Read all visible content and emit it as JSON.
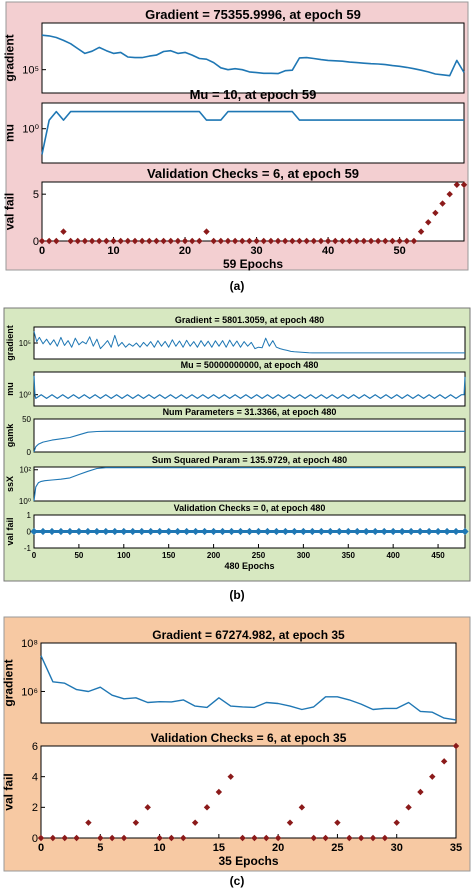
{
  "colors": {
    "panel_a_bg": "#f3cfd1",
    "panel_b_bg": "#d7e8c1",
    "panel_c_bg": "#f7c9a3",
    "line": "#1f77b4",
    "marker": "#8b1a1a"
  },
  "panel_labels": [
    "(a)",
    "(b)",
    "(c)"
  ],
  "chart_data": [
    {
      "panel": "(a)",
      "type": "line",
      "title": "Gradient = 75355.9996, at epoch 59",
      "ylabel": "gradient",
      "xlabel": "",
      "yscale": "log",
      "ylim": [
        10000,
        10000000
      ],
      "yticks": [
        100000
      ],
      "yticklabels": [
        "10⁵"
      ],
      "xlim": [
        0,
        59
      ],
      "xticks": [],
      "xticklabels": [],
      "x": [
        0,
        1,
        2,
        3,
        4,
        5,
        6,
        7,
        8,
        9,
        10,
        11,
        12,
        13,
        14,
        15,
        16,
        17,
        18,
        19,
        20,
        21,
        22,
        23,
        24,
        25,
        26,
        27,
        28,
        29,
        30,
        31,
        32,
        33,
        34,
        35,
        36,
        37,
        38,
        39,
        40,
        41,
        42,
        43,
        44,
        45,
        46,
        47,
        48,
        49,
        50,
        51,
        52,
        53,
        54,
        55,
        56,
        57,
        58,
        59
      ],
      "values": [
        3000000,
        2800000,
        2400000,
        1800000,
        1300000,
        800000,
        500000,
        620000,
        900000,
        650000,
        500000,
        550000,
        350000,
        330000,
        330000,
        380000,
        420000,
        600000,
        650000,
        500000,
        550000,
        420000,
        300000,
        280000,
        200000,
        120000,
        100000,
        110000,
        100000,
        80000,
        75000,
        70000,
        70000,
        68000,
        90000,
        95000,
        320000,
        330000,
        300000,
        270000,
        250000,
        240000,
        230000,
        210000,
        200000,
        190000,
        180000,
        175000,
        165000,
        150000,
        140000,
        125000,
        110000,
        95000,
        80000,
        65000,
        60000,
        55000,
        250000,
        75356
      ]
    },
    {
      "panel": "(a)",
      "type": "line",
      "title": "Mu = 10, at epoch 59",
      "ylabel": "mu",
      "xlabel": "",
      "yscale": "log",
      "ylim": [
        0.0001,
        1000
      ],
      "yticks": [
        1
      ],
      "yticklabels": [
        "10⁰"
      ],
      "xlim": [
        0,
        59
      ],
      "xticks": [],
      "xticklabels": [],
      "x": [
        0,
        1,
        2,
        3,
        4,
        5,
        6,
        7,
        8,
        9,
        10,
        11,
        12,
        13,
        14,
        15,
        16,
        17,
        18,
        19,
        20,
        21,
        22,
        23,
        24,
        25,
        26,
        27,
        28,
        29,
        30,
        31,
        32,
        33,
        34,
        35,
        36,
        37,
        38,
        39,
        40,
        41,
        42,
        43,
        44,
        45,
        46,
        47,
        48,
        49,
        50,
        51,
        52,
        53,
        54,
        55,
        56,
        57,
        58,
        59
      ],
      "values": [
        0.001,
        10,
        100,
        10,
        100,
        100,
        100,
        100,
        100,
        100,
        100,
        100,
        100,
        100,
        100,
        100,
        100,
        100,
        100,
        100,
        100,
        100,
        100,
        10,
        10,
        10,
        100,
        100,
        100,
        100,
        100,
        100,
        100,
        100,
        100,
        100,
        10,
        10,
        10,
        10,
        10,
        10,
        10,
        10,
        10,
        10,
        10,
        10,
        10,
        10,
        10,
        10,
        10,
        10,
        10,
        10,
        10,
        10,
        10,
        10
      ]
    },
    {
      "panel": "(a)",
      "type": "scatter",
      "title": "Validation Checks = 6, at epoch 59",
      "ylabel": "val fail",
      "xlabel": "59 Epochs",
      "ylim": [
        0,
        6.3
      ],
      "yticks": [
        0,
        5
      ],
      "yticklabels": [
        "0",
        "5"
      ],
      "xlim": [
        0,
        59
      ],
      "xticks": [
        0,
        10,
        20,
        30,
        40,
        50
      ],
      "xticklabels": [
        "0",
        "10",
        "20",
        "30",
        "40",
        "50"
      ],
      "x": [
        0,
        1,
        2,
        3,
        4,
        5,
        6,
        7,
        8,
        9,
        10,
        11,
        12,
        13,
        14,
        15,
        16,
        17,
        18,
        19,
        20,
        21,
        22,
        23,
        24,
        25,
        26,
        27,
        28,
        29,
        30,
        31,
        32,
        33,
        34,
        35,
        36,
        37,
        38,
        39,
        40,
        41,
        42,
        43,
        44,
        45,
        46,
        47,
        48,
        49,
        50,
        51,
        52,
        53,
        54,
        55,
        56,
        57,
        58,
        59
      ],
      "values": [
        0,
        0,
        0,
        1,
        0,
        0,
        0,
        0,
        0,
        0,
        0,
        0,
        0,
        0,
        0,
        0,
        0,
        0,
        0,
        0,
        0,
        0,
        0,
        1,
        0,
        0,
        0,
        0,
        0,
        0,
        0,
        0,
        0,
        0,
        0,
        0,
        0,
        0,
        0,
        0,
        0,
        0,
        0,
        0,
        0,
        0,
        0,
        0,
        0,
        0,
        0,
        0,
        0,
        1,
        2,
        3,
        4,
        5,
        6,
        6
      ]
    },
    {
      "panel": "(b)",
      "type": "line",
      "title": "Gradient = 5801.3059, at epoch 480",
      "ylabel": "gradient",
      "xlabel": "",
      "yscale": "log",
      "ylim": [
        1000,
        10000000
      ],
      "yticks": [
        100000
      ],
      "yticklabels": [
        "10⁵"
      ],
      "xlim": [
        0,
        480
      ],
      "xticks": [],
      "xticklabels": [],
      "x": [
        0,
        3,
        6,
        10,
        14,
        18,
        22,
        26,
        30,
        34,
        38,
        42,
        46,
        50,
        54,
        58,
        62,
        66,
        70,
        74,
        78,
        82,
        86,
        90,
        94,
        98,
        102,
        106,
        110,
        114,
        118,
        122,
        126,
        130,
        134,
        138,
        142,
        146,
        150,
        154,
        158,
        162,
        166,
        170,
        174,
        178,
        182,
        186,
        190,
        194,
        198,
        202,
        206,
        210,
        214,
        218,
        222,
        226,
        230,
        234,
        238,
        242,
        246,
        250,
        254,
        258,
        262,
        266,
        270,
        274,
        278,
        282,
        286,
        290,
        294,
        298,
        302,
        306,
        310,
        480
      ],
      "values": [
        3000000,
        150000,
        500000,
        80000,
        300000,
        60000,
        250000,
        40000,
        500000,
        50000,
        200000,
        30000,
        400000,
        60000,
        150000,
        80000,
        600000,
        40000,
        300000,
        20000,
        60000,
        200000,
        30000,
        900000,
        40000,
        120000,
        30000,
        80000,
        40000,
        100000,
        30000,
        120000,
        40000,
        150000,
        30000,
        200000,
        40000,
        160000,
        30000,
        250000,
        40000,
        180000,
        30000,
        220000,
        40000,
        150000,
        30000,
        200000,
        40000,
        170000,
        30000,
        190000,
        40000,
        200000,
        30000,
        230000,
        40000,
        180000,
        30000,
        150000,
        40000,
        120000,
        20000,
        30000,
        25000,
        400000,
        40000,
        200000,
        30000,
        20000,
        15000,
        12000,
        9000,
        8000,
        7500,
        7000,
        6500,
        6000,
        5800,
        5801
      ]
    },
    {
      "panel": "(b)",
      "type": "line",
      "title": "Mu = 50000000000, at epoch 480",
      "ylabel": "mu",
      "xlabel": "",
      "yscale": "log",
      "ylim": [
        0.001,
        1000000
      ],
      "yticks": [
        1
      ],
      "yticklabels": [
        "10⁰"
      ],
      "xlim": [
        0,
        480
      ],
      "xticks": [],
      "xticklabels": [],
      "x": [
        0,
        1,
        2,
        8,
        14,
        20,
        26,
        32,
        38,
        44,
        50,
        56,
        62,
        68,
        74,
        80,
        86,
        92,
        98,
        104,
        110,
        116,
        122,
        128,
        134,
        140,
        146,
        152,
        158,
        164,
        170,
        176,
        182,
        188,
        194,
        200,
        206,
        212,
        218,
        224,
        230,
        236,
        242,
        248,
        254,
        260,
        266,
        272,
        278,
        284,
        290,
        296,
        302,
        308,
        314,
        320,
        326,
        332,
        338,
        344,
        350,
        356,
        362,
        368,
        374,
        380,
        386,
        392,
        398,
        404,
        410,
        416,
        422,
        428,
        434,
        440,
        446,
        452,
        458,
        464,
        470,
        476,
        479,
        480
      ],
      "values": [
        100000,
        1,
        0.1,
        1,
        0.1,
        1,
        0.1,
        1,
        0.1,
        1,
        0.1,
        1,
        0.1,
        1,
        0.1,
        1,
        0.1,
        1,
        0.1,
        1,
        0.1,
        1,
        0.1,
        1,
        0.1,
        1,
        0.1,
        1,
        0.1,
        1,
        0.1,
        1,
        0.1,
        1,
        0.1,
        1,
        0.1,
        1,
        0.1,
        1,
        0.1,
        1,
        0.1,
        1,
        0.1,
        1,
        0.1,
        1,
        0.1,
        1,
        0.1,
        1,
        0.1,
        1,
        0.1,
        1,
        0.1,
        1,
        0.1,
        1,
        0.1,
        1,
        0.1,
        1,
        0.1,
        1,
        0.1,
        1,
        0.1,
        1,
        0.1,
        1,
        0.1,
        1,
        0.1,
        1,
        0.1,
        1,
        0.1,
        1,
        0.1,
        1,
        1,
        50000
      ]
    },
    {
      "panel": "(b)",
      "type": "line",
      "title": "Num Parameters = 31.3366, at epoch 480",
      "ylabel": "gamk",
      "xlabel": "",
      "ylim": [
        0,
        50
      ],
      "yticks": [
        0,
        50
      ],
      "yticklabels": [
        "0",
        "50"
      ],
      "xlim": [
        0,
        480
      ],
      "xticks": [],
      "xticklabels": [],
      "x": [
        0,
        2,
        5,
        10,
        20,
        30,
        40,
        50,
        60,
        70,
        80,
        480
      ],
      "values": [
        0,
        8,
        12,
        15,
        18,
        20,
        22,
        26,
        30,
        31,
        31.3,
        31.3366
      ]
    },
    {
      "panel": "(b)",
      "type": "line",
      "title": "Sum Squared Param = 135.9729, at epoch 480",
      "ylabel": "ssX",
      "xlabel": "",
      "yscale": "log",
      "ylim": [
        1,
        150
      ],
      "yticks": [
        1,
        100
      ],
      "yticklabels": [
        "10⁰",
        "10²"
      ],
      "xlim": [
        0,
        480
      ],
      "xticks": [],
      "xticklabels": [],
      "x": [
        0,
        2,
        5,
        8,
        12,
        20,
        30,
        40,
        50,
        60,
        70,
        80,
        480
      ],
      "values": [
        1,
        8,
        15,
        18,
        20,
        22,
        25,
        30,
        50,
        80,
        120,
        135,
        135.9729
      ]
    },
    {
      "panel": "(b)",
      "type": "scatter",
      "title": "Validation Checks = 0, at epoch 480",
      "ylabel": "val fail",
      "xlabel": "480 Epochs",
      "ylim": [
        -1,
        1
      ],
      "yticks": [
        -1,
        0,
        1
      ],
      "yticklabels": [
        "-1",
        "0",
        "1"
      ],
      "xlim": [
        0,
        480
      ],
      "xticks": [
        0,
        50,
        100,
        150,
        200,
        250,
        300,
        350,
        400,
        450
      ],
      "xticklabels": [
        "0",
        "50",
        "100",
        "150",
        "200",
        "250",
        "300",
        "350",
        "400",
        "450"
      ],
      "x": [
        0,
        10,
        20,
        30,
        40,
        50,
        60,
        70,
        80,
        90,
        100,
        110,
        120,
        130,
        140,
        150,
        160,
        170,
        180,
        190,
        200,
        210,
        220,
        230,
        240,
        250,
        260,
        270,
        280,
        290,
        300,
        310,
        320,
        330,
        340,
        350,
        360,
        370,
        380,
        390,
        400,
        410,
        420,
        430,
        440,
        450,
        460,
        470,
        480
      ],
      "values": [
        0,
        0,
        0,
        0,
        0,
        0,
        0,
        0,
        0,
        0,
        0,
        0,
        0,
        0,
        0,
        0,
        0,
        0,
        0,
        0,
        0,
        0,
        0,
        0,
        0,
        0,
        0,
        0,
        0,
        0,
        0,
        0,
        0,
        0,
        0,
        0,
        0,
        0,
        0,
        0,
        0,
        0,
        0,
        0,
        0,
        0,
        0,
        0,
        0
      ]
    },
    {
      "panel": "(c)",
      "type": "line",
      "title": "Gradient = 67274.982, at epoch 35",
      "ylabel": "gradient",
      "xlabel": "",
      "yscale": "log",
      "ylim": [
        50000,
        100000000
      ],
      "yticks": [
        1000000,
        100000000
      ],
      "yticklabels": [
        "10⁶",
        "10⁸"
      ],
      "xlim": [
        0,
        35
      ],
      "xticks": [],
      "xticklabels": [],
      "x": [
        0,
        1,
        2,
        3,
        4,
        5,
        6,
        7,
        8,
        9,
        10,
        11,
        12,
        13,
        14,
        15,
        16,
        17,
        18,
        19,
        20,
        21,
        22,
        23,
        24,
        25,
        26,
        27,
        28,
        29,
        30,
        31,
        32,
        33,
        34,
        35
      ],
      "values": [
        30000000,
        2500000,
        2200000,
        1200000,
        1000000,
        1500000,
        700000,
        500000,
        550000,
        350000,
        380000,
        370000,
        450000,
        250000,
        220000,
        550000,
        250000,
        230000,
        220000,
        350000,
        320000,
        250000,
        180000,
        230000,
        600000,
        600000,
        450000,
        300000,
        180000,
        200000,
        200000,
        350000,
        150000,
        140000,
        80000,
        67275
      ]
    },
    {
      "panel": "(c)",
      "type": "scatter",
      "title": "Validation Checks = 6, at epoch 35",
      "ylabel": "val fail",
      "xlabel": "35 Epochs",
      "ylim": [
        0,
        6
      ],
      "yticks": [
        0,
        2,
        4,
        6
      ],
      "yticklabels": [
        "0",
        "2",
        "4",
        "6"
      ],
      "xlim": [
        0,
        35
      ],
      "xticks": [
        0,
        5,
        10,
        15,
        20,
        25,
        30,
        35
      ],
      "xticklabels": [
        "0",
        "5",
        "10",
        "15",
        "20",
        "25",
        "30",
        "35"
      ],
      "x": [
        0,
        1,
        2,
        3,
        4,
        5,
        6,
        7,
        8,
        9,
        10,
        11,
        12,
        13,
        14,
        15,
        16,
        17,
        18,
        19,
        20,
        21,
        22,
        23,
        24,
        25,
        26,
        27,
        28,
        29,
        30,
        31,
        32,
        33,
        34,
        35
      ],
      "values": [
        0,
        0,
        0,
        0,
        1,
        0,
        0,
        0,
        1,
        2,
        0,
        0,
        0,
        1,
        2,
        3,
        4,
        0,
        0,
        0,
        0,
        1,
        2,
        0,
        0,
        1,
        0,
        0,
        0,
        0,
        1,
        2,
        3,
        4,
        5,
        6
      ]
    }
  ]
}
